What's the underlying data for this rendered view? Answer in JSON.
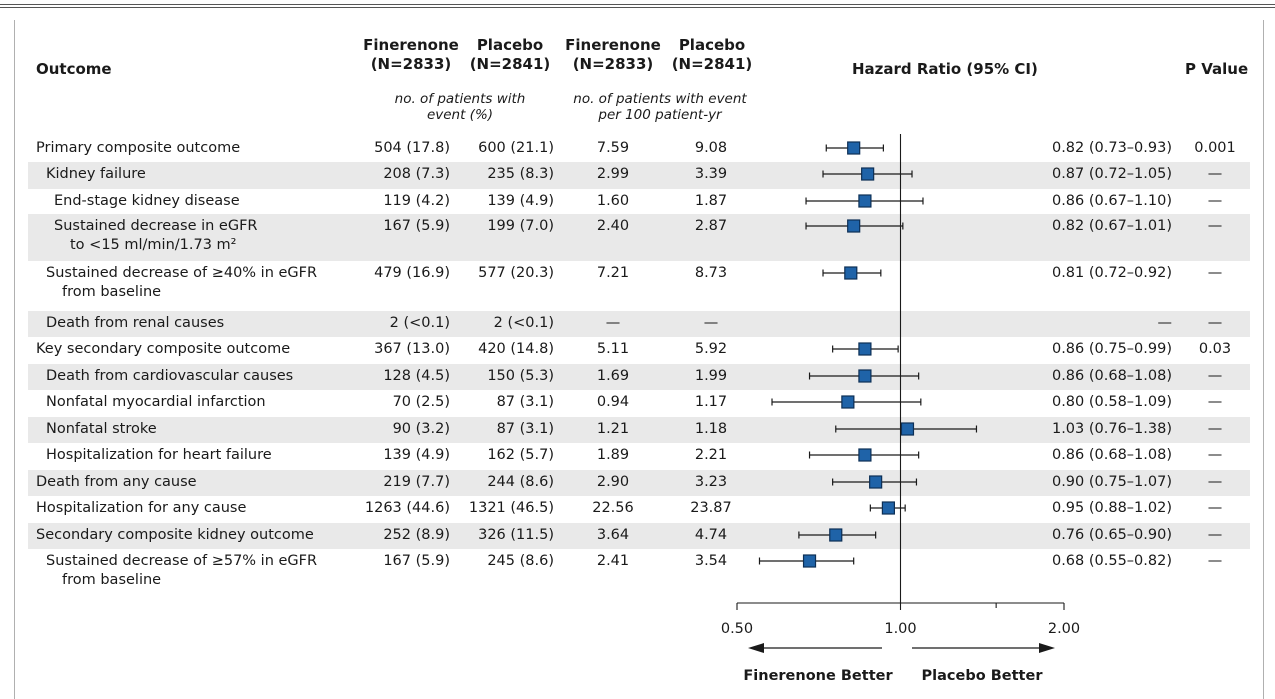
{
  "headers": {
    "outcome": "Outcome",
    "col1": [
      "Finerenone",
      "(N=2833)"
    ],
    "col2": [
      "Placebo",
      "(N=2841)"
    ],
    "col3": [
      "Finerenone",
      "(N=2833)"
    ],
    "col4": [
      "Placebo",
      "(N=2841)"
    ],
    "hr": "Hazard Ratio (95% CI)",
    "p": "P Value",
    "sub_events": [
      "no. of patients with",
      "event (%)"
    ],
    "sub_rate": [
      "no. of patients with event",
      "per 100 patient-yr"
    ]
  },
  "chart_data": {
    "type": "forest",
    "x_scale": "log",
    "xlim": [
      0.5,
      2.0
    ],
    "ticks": [
      0.5,
      1.0,
      2.0
    ],
    "tick_labels": [
      "0.50",
      "1.00",
      "2.00"
    ],
    "minor_ticks": [
      1.5
    ],
    "reference_line": 1.0,
    "left_label": "Finerenone Better",
    "right_label": "Placebo Better",
    "rows": [
      {
        "label": [
          "Primary composite outcome"
        ],
        "indent": 0,
        "shaded": false,
        "fin": "504 (17.8)",
        "pla": "600 (21.1)",
        "fin_rate": "7.59",
        "pla_rate": "9.08",
        "hr": 0.82,
        "lo": 0.73,
        "hi": 0.93,
        "ci_text": "0.82 (0.73–0.93)",
        "p": "0.001"
      },
      {
        "label": [
          "Kidney failure"
        ],
        "indent": 1,
        "shaded": true,
        "fin": "208 (7.3)",
        "pla": "235 (8.3)",
        "fin_rate": "2.99",
        "pla_rate": "3.39",
        "hr": 0.87,
        "lo": 0.72,
        "hi": 1.05,
        "ci_text": "0.87 (0.72–1.05)",
        "p": "—"
      },
      {
        "label": [
          "End-stage kidney disease"
        ],
        "indent": 2,
        "shaded": false,
        "fin": "119 (4.2)",
        "pla": "139 (4.9)",
        "fin_rate": "1.60",
        "pla_rate": "1.87",
        "hr": 0.86,
        "lo": 0.67,
        "hi": 1.1,
        "ci_text": "0.86 (0.67–1.10)",
        "p": "—"
      },
      {
        "label": [
          "Sustained decrease in eGFR",
          "to <15 ml/min/1.73 m²"
        ],
        "indent": 2,
        "shaded": true,
        "fin": "167 (5.9)",
        "pla": "199 (7.0)",
        "fin_rate": "2.40",
        "pla_rate": "2.87",
        "hr": 0.82,
        "lo": 0.67,
        "hi": 1.01,
        "ci_text": "0.82 (0.67–1.01)",
        "p": "—"
      },
      {
        "label": [
          "Sustained decrease of ≥40% in eGFR",
          "from baseline"
        ],
        "indent": 1,
        "shaded": false,
        "fin": "479 (16.9)",
        "pla": "577 (20.3)",
        "fin_rate": "7.21",
        "pla_rate": "8.73",
        "hr": 0.81,
        "lo": 0.72,
        "hi": 0.92,
        "ci_text": "0.81 (0.72–0.92)",
        "p": "—"
      },
      {
        "label": [
          "Death from renal causes"
        ],
        "indent": 1,
        "shaded": true,
        "fin": "2 (<0.1)",
        "pla": "2 (<0.1)",
        "fin_rate": "—",
        "pla_rate": "—",
        "hr": null,
        "lo": null,
        "hi": null,
        "ci_text": "—",
        "p": "—"
      },
      {
        "label": [
          "Key secondary composite outcome"
        ],
        "indent": 0,
        "shaded": false,
        "fin": "367 (13.0)",
        "pla": "420 (14.8)",
        "fin_rate": "5.11",
        "pla_rate": "5.92",
        "hr": 0.86,
        "lo": 0.75,
        "hi": 0.99,
        "ci_text": "0.86 (0.75–0.99)",
        "p": "0.03"
      },
      {
        "label": [
          "Death from cardiovascular causes"
        ],
        "indent": 1,
        "shaded": true,
        "fin": "128 (4.5)",
        "pla": "150 (5.3)",
        "fin_rate": "1.69",
        "pla_rate": "1.99",
        "hr": 0.86,
        "lo": 0.68,
        "hi": 1.08,
        "ci_text": "0.86 (0.68–1.08)",
        "p": "—"
      },
      {
        "label": [
          "Nonfatal myocardial infarction"
        ],
        "indent": 1,
        "shaded": false,
        "fin": "70 (2.5)",
        "pla": "87 (3.1)",
        "fin_rate": "0.94",
        "pla_rate": "1.17",
        "hr": 0.8,
        "lo": 0.58,
        "hi": 1.09,
        "ci_text": "0.80 (0.58–1.09)",
        "p": "—"
      },
      {
        "label": [
          "Nonfatal stroke"
        ],
        "indent": 1,
        "shaded": true,
        "fin": "90 (3.2)",
        "pla": "87 (3.1)",
        "fin_rate": "1.21",
        "pla_rate": "1.18",
        "hr": 1.03,
        "lo": 0.76,
        "hi": 1.38,
        "ci_text": "1.03 (0.76–1.38)",
        "p": "—"
      },
      {
        "label": [
          "Hospitalization for heart failure"
        ],
        "indent": 1,
        "shaded": false,
        "fin": "139 (4.9)",
        "pla": "162 (5.7)",
        "fin_rate": "1.89",
        "pla_rate": "2.21",
        "hr": 0.86,
        "lo": 0.68,
        "hi": 1.08,
        "ci_text": "0.86 (0.68–1.08)",
        "p": "—"
      },
      {
        "label": [
          "Death from any cause"
        ],
        "indent": 0,
        "shaded": true,
        "fin": "219 (7.7)",
        "pla": "244 (8.6)",
        "fin_rate": "2.90",
        "pla_rate": "3.23",
        "hr": 0.9,
        "lo": 0.75,
        "hi": 1.07,
        "ci_text": "0.90 (0.75–1.07)",
        "p": "—"
      },
      {
        "label": [
          "Hospitalization for any cause"
        ],
        "indent": 0,
        "shaded": false,
        "fin": "1263 (44.6)",
        "pla": "1321 (46.5)",
        "fin_rate": "22.56",
        "pla_rate": "23.87",
        "hr": 0.95,
        "lo": 0.88,
        "hi": 1.02,
        "ci_text": "0.95 (0.88–1.02)",
        "p": "—"
      },
      {
        "label": [
          "Secondary composite kidney outcome"
        ],
        "indent": 0,
        "shaded": true,
        "fin": "252 (8.9)",
        "pla": "326 (11.5)",
        "fin_rate": "3.64",
        "pla_rate": "4.74",
        "hr": 0.76,
        "lo": 0.65,
        "hi": 0.9,
        "ci_text": "0.76 (0.65–0.90)",
        "p": "—"
      },
      {
        "label": [
          "Sustained decrease of ≥57% in eGFR",
          "from baseline"
        ],
        "indent": 1,
        "shaded": false,
        "fin": "167 (5.9)",
        "pla": "245 (8.6)",
        "fin_rate": "2.41",
        "pla_rate": "3.54",
        "hr": 0.68,
        "lo": 0.55,
        "hi": 0.82,
        "ci_text": "0.68 (0.55–0.82)",
        "p": "—"
      }
    ]
  },
  "colors": {
    "marker": "#1f63a8",
    "marker_stroke": "#0d2f55",
    "band": "#e9e9e9",
    "ink": "#1a1a1a"
  }
}
